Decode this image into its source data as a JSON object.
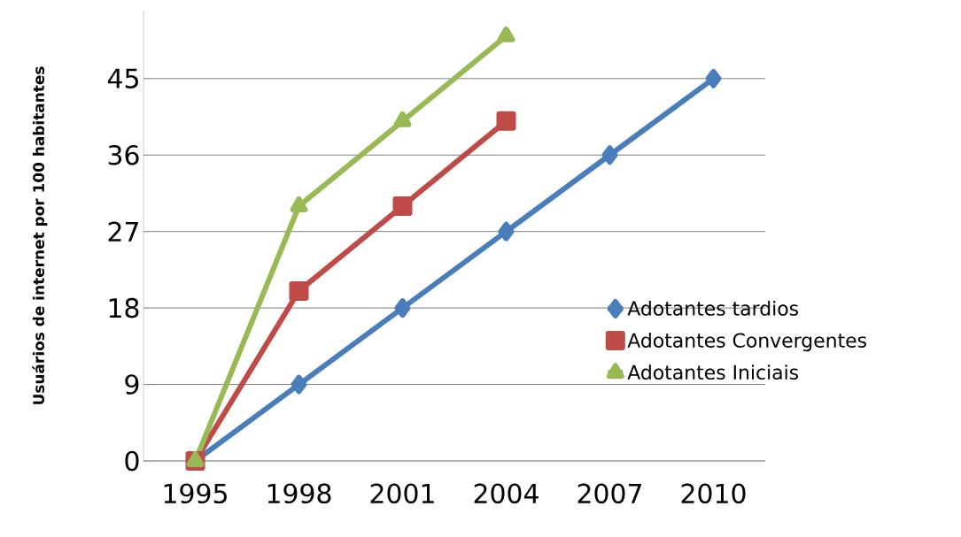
{
  "chart_data": {
    "type": "line",
    "ylabel": "Usuários de internet por 100 habitantes",
    "categories": [
      "1995",
      "1998",
      "2001",
      "2004",
      "2007",
      "2010"
    ],
    "series": [
      {
        "name": "Adotantes tardios",
        "color": "#4a7ebb",
        "marker": "diamond",
        "values": [
          0,
          9,
          18,
          27,
          36,
          45
        ]
      },
      {
        "name": "Adotantes Convergentes",
        "color": "#be4b48",
        "marker": "square",
        "values": [
          0,
          20,
          30,
          40,
          null,
          null
        ]
      },
      {
        "name": "Adotantes Iniciais",
        "color": "#98b954",
        "marker": "triangle",
        "values": [
          0,
          30,
          40,
          50,
          null,
          null
        ]
      }
    ],
    "ylim": [
      0,
      53
    ],
    "yticks": [
      0,
      9,
      18,
      27,
      36,
      45
    ],
    "grid": "y",
    "legend": "right",
    "line_style": "solid"
  }
}
